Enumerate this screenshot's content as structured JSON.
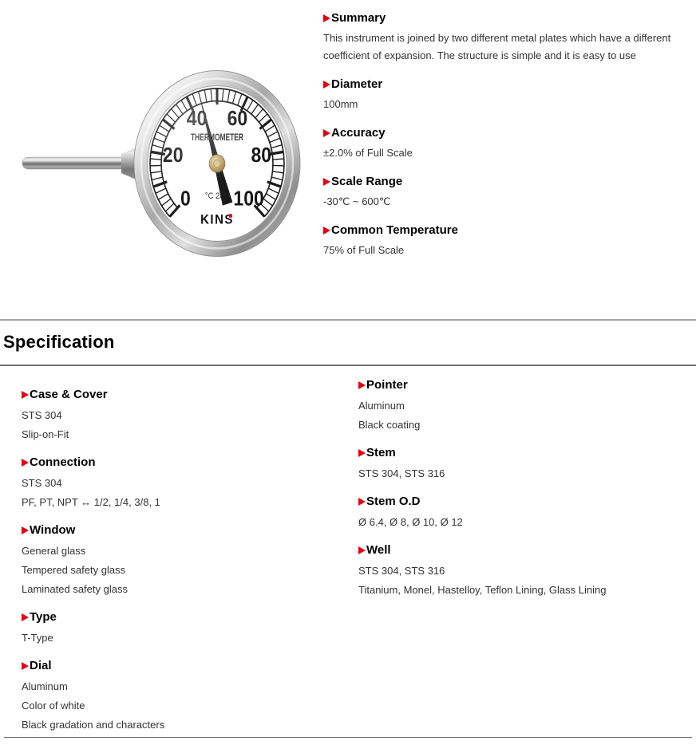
{
  "accent_color": "#e60012",
  "gauge": {
    "dial_label": "THERMOMETER",
    "dial_sub_label": "°C 2/1",
    "brand": "KINS",
    "pointer_value": 44,
    "scale": {
      "min": 0,
      "max": 100,
      "start_angle": -135,
      "end_angle": 135,
      "minor_step": 2,
      "major_step": 10,
      "labels": [
        0,
        20,
        40,
        60,
        80,
        100
      ]
    }
  },
  "overview": {
    "sections": [
      {
        "title": "Summary",
        "lines": [
          "This instrument is joined by two different metal plates which have a different coefficient of expansion. The structure is simple and it is easy to use"
        ]
      },
      {
        "title": "Diameter",
        "lines": [
          "100mm"
        ]
      },
      {
        "title": "Accuracy",
        "lines": [
          "±2.0% of Full Scale"
        ]
      },
      {
        "title": "Scale Range",
        "lines": [
          "-30℃ ~ 600℃"
        ]
      },
      {
        "title": "Common Temperature",
        "lines": [
          "75% of Full Scale"
        ]
      }
    ]
  },
  "specification": {
    "title": "Specification",
    "left_sections": [
      {
        "title": "Case & Cover",
        "lines": [
          "STS 304",
          "Slip-on-Fit"
        ]
      },
      {
        "title": "Connection",
        "lines": [
          "STS 304",
          "PF, PT, NPT ↔ 1/2, 1/4, 3/8, 1"
        ]
      },
      {
        "title": "Window",
        "lines": [
          "General glass",
          "Tempered safety glass",
          "Laminated safety glass"
        ]
      },
      {
        "title": "Type",
        "lines": [
          "T-Type"
        ]
      },
      {
        "title": "Dial",
        "lines": [
          "Aluminum",
          "Color of white",
          "Black gradation and characters"
        ]
      }
    ],
    "right_sections": [
      {
        "title": "Pointer",
        "lines": [
          "Aluminum",
          "Black coating"
        ]
      },
      {
        "title": "Stem",
        "lines": [
          "STS 304, STS 316"
        ]
      },
      {
        "title": "Stem O.D",
        "lines": [
          "Ø 6.4, Ø 8, Ø 10, Ø 12"
        ]
      },
      {
        "title": "Well",
        "lines": [
          "STS 304, STS 316",
          "Titanium, Monel, Hastelloy, Teflon Lining, Glass Lining"
        ]
      }
    ]
  }
}
